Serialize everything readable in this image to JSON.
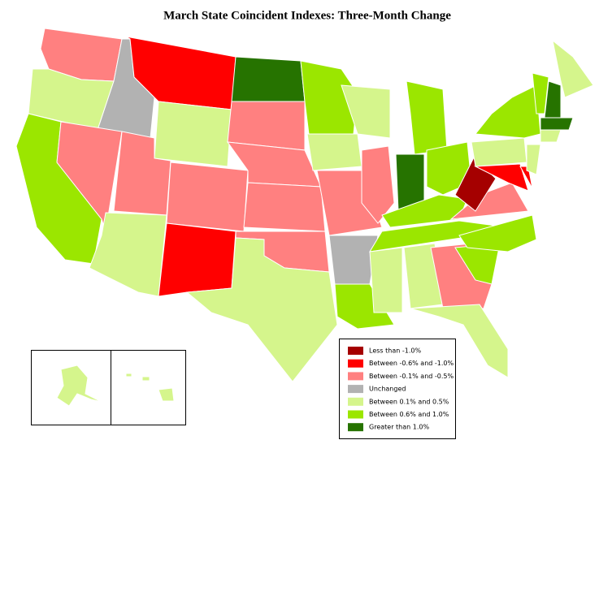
{
  "title": "March State Coincident Indexes: Three-Month Change",
  "legend": [
    {
      "label": "Less than -1.0%",
      "color": "#a50000"
    },
    {
      "label": "Between -0.6% and -1.0%",
      "color": "#ff0000"
    },
    {
      "label": "Between -0.1% and -0.5%",
      "color": "#ff8080"
    },
    {
      "label": "Unchanged",
      "color": "#b2b2b2"
    },
    {
      "label": "Between 0.1% and 0.5%",
      "color": "#d5f58c"
    },
    {
      "label": "Between 0.6% and 1.0%",
      "color": "#9be600"
    },
    {
      "label": "Greater than 1.0%",
      "color": "#267300"
    }
  ]
}
